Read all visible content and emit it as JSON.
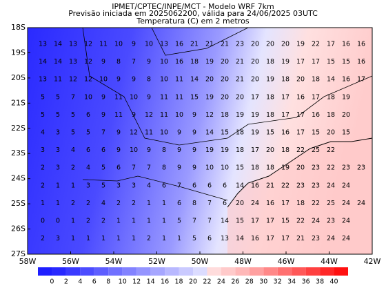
{
  "title_lines": [
    "IPMET/CPTEC/INPE/MCT - Modelo WRF 7km",
    "Previsão iniciada em 2025062200, válida para 24/06/2025 03UTC",
    "Temperatura (C) em 2 metros"
  ],
  "xticks": [
    {
      "value": -58,
      "label": "58W"
    },
    {
      "value": -56,
      "label": "56W"
    },
    {
      "value": -54,
      "label": "54W"
    },
    {
      "value": -52,
      "label": "52W"
    },
    {
      "value": -50,
      "label": "50W"
    },
    {
      "value": -48,
      "label": "48W"
    },
    {
      "value": -46,
      "label": "46W"
    },
    {
      "value": -44,
      "label": "44W"
    },
    {
      "value": -42,
      "label": "42W"
    }
  ],
  "yticks": [
    {
      "value": -18,
      "label": "18S"
    },
    {
      "value": -19,
      "label": "19S"
    },
    {
      "value": -20,
      "label": "20S"
    },
    {
      "value": -21,
      "label": "21S"
    },
    {
      "value": -22,
      "label": "22S"
    },
    {
      "value": -23,
      "label": "23S"
    },
    {
      "value": -24,
      "label": "24S"
    },
    {
      "value": -25,
      "label": "25S"
    },
    {
      "value": -26,
      "label": "26S"
    },
    {
      "value": -27,
      "label": "27S"
    }
  ],
  "xlim": [
    -58,
    -42
  ],
  "ylim": [
    -27,
    -18
  ],
  "temperature_grid": [
    [
      13,
      14,
      13,
      12,
      11,
      10,
      9,
      10,
      13,
      16,
      21,
      21,
      21,
      23,
      20,
      20,
      20,
      19,
      22,
      17,
      16,
      16
    ],
    [
      14,
      14,
      13,
      12,
      9,
      8,
      7,
      9,
      10,
      16,
      18,
      19,
      20,
      21,
      20,
      18,
      19,
      17,
      17,
      15,
      15,
      16
    ],
    [
      13,
      11,
      12,
      12,
      10,
      9,
      9,
      8,
      10,
      11,
      14,
      20,
      20,
      21,
      20,
      19,
      18,
      20,
      18,
      14,
      16,
      17
    ],
    [
      5,
      5,
      7,
      10,
      9,
      11,
      10,
      9,
      11,
      11,
      15,
      19,
      20,
      20,
      17,
      18,
      17,
      16,
      17,
      18,
      19
    ],
    [
      5,
      5,
      5,
      6,
      9,
      11,
      9,
      12,
      11,
      10,
      9,
      12,
      18,
      19,
      19,
      18,
      17,
      17,
      16,
      18,
      20
    ],
    [
      4,
      3,
      5,
      5,
      7,
      9,
      12,
      11,
      10,
      9,
      9,
      14,
      15,
      18,
      19,
      15,
      16,
      17,
      15,
      20,
      15
    ],
    [
      3,
      3,
      4,
      6,
      6,
      9,
      10,
      9,
      8,
      9,
      9,
      19,
      19,
      18,
      17,
      20,
      18,
      22,
      25,
      22
    ],
    [
      2,
      3,
      2,
      4,
      5,
      6,
      7,
      7,
      8,
      9,
      9,
      10,
      10,
      15,
      18,
      18,
      19,
      20,
      23,
      22,
      23,
      23
    ],
    [
      2,
      1,
      1,
      3,
      5,
      3,
      3,
      4,
      6,
      7,
      6,
      6,
      6,
      14,
      16,
      21,
      22,
      23,
      23,
      24,
      24
    ],
    [
      1,
      1,
      2,
      2,
      4,
      2,
      2,
      1,
      1,
      6,
      8,
      7,
      6,
      20,
      24,
      16,
      17,
      18,
      22,
      25,
      24,
      24
    ],
    [
      0,
      0,
      1,
      2,
      2,
      1,
      1,
      1,
      1,
      5,
      7,
      7,
      14,
      15,
      17,
      17,
      15,
      22,
      24,
      23,
      24
    ],
    [
      2,
      3,
      1,
      1,
      1,
      1,
      1,
      2,
      1,
      1,
      5,
      6,
      13,
      14,
      16,
      17,
      17,
      21,
      23,
      24,
      24
    ]
  ],
  "colorbar": {
    "colors": [
      "#1e1eff",
      "#2828ff",
      "#3a3aff",
      "#4c4cff",
      "#5e5eff",
      "#7070ff",
      "#8282ff",
      "#9494ff",
      "#a6a6ff",
      "#b8b8ff",
      "#cacaff",
      "#dcdcff",
      "#ffdcdc",
      "#ffcaca",
      "#ffb8b8",
      "#ffa0a0",
      "#ff8888",
      "#ff7070",
      "#ff5858",
      "#ff4040",
      "#ff2828",
      "#ff1010"
    ],
    "ticks": [
      0,
      2,
      4,
      6,
      8,
      10,
      12,
      14,
      16,
      18,
      20,
      22,
      24,
      26,
      28,
      30,
      32,
      34,
      36,
      38,
      40
    ]
  }
}
